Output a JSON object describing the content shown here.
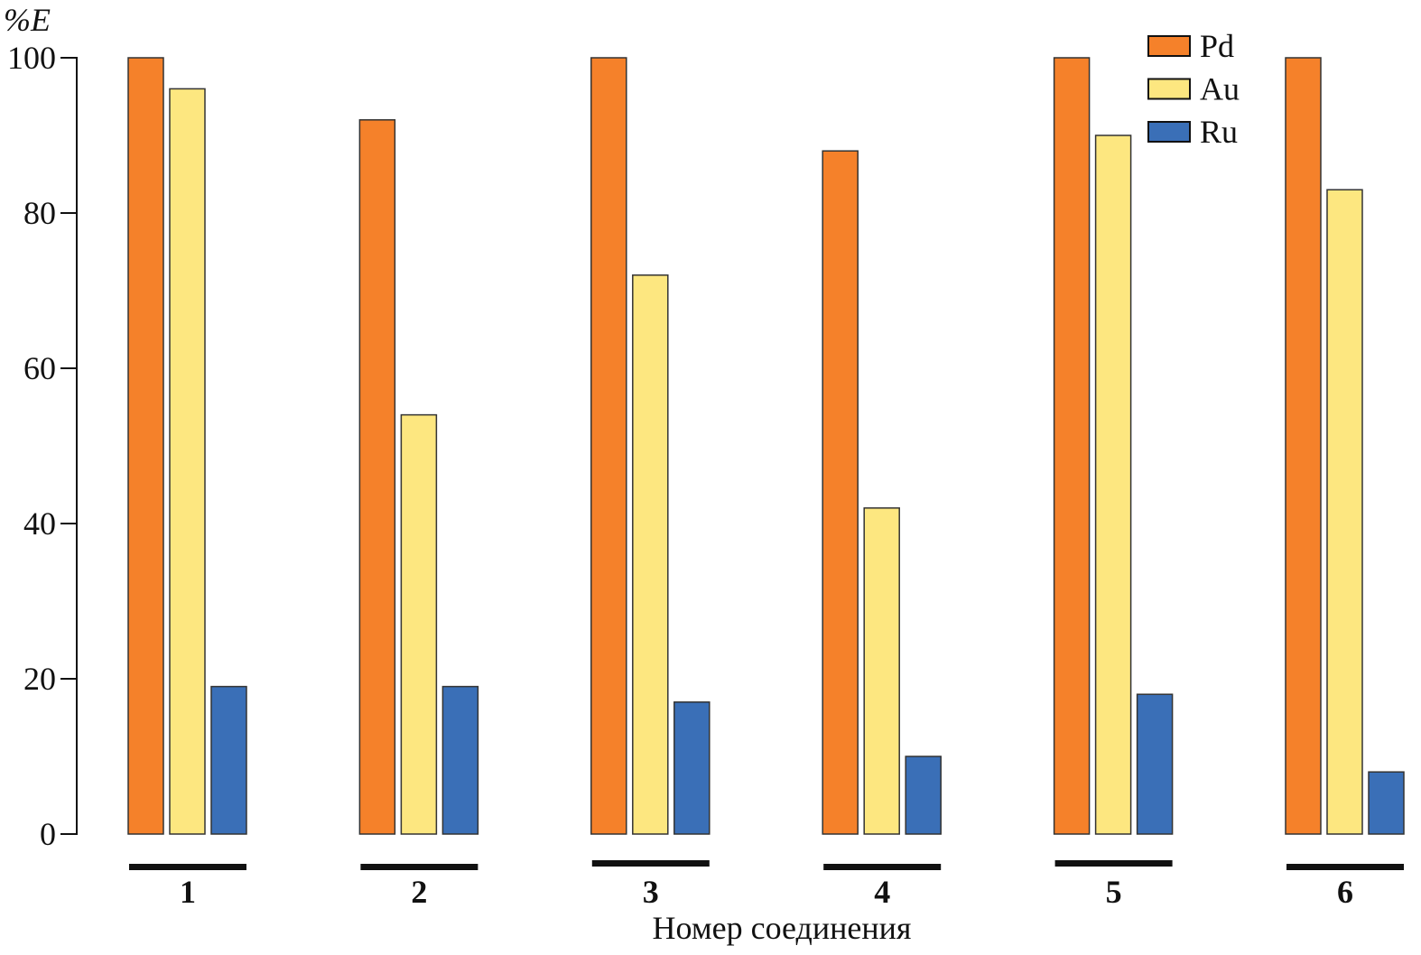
{
  "chart_data": {
    "type": "bar",
    "title": "",
    "ylabel": "%E",
    "xlabel": "Номер соединения",
    "ylim": [
      0,
      100
    ],
    "yticks": [
      "0",
      "20",
      "40",
      "60",
      "80",
      "100"
    ],
    "categories": [
      "1",
      "2",
      "3",
      "4",
      "5",
      "6"
    ],
    "legend_position": "top-right",
    "grid": false,
    "series": [
      {
        "name": "Pd",
        "color": "#f5812a",
        "values": [
          100,
          92,
          100,
          88,
          100,
          100
        ]
      },
      {
        "name": "Au",
        "color": "#fde780",
        "values": [
          96,
          54,
          72,
          42,
          90,
          83
        ]
      },
      {
        "name": "Ru",
        "color": "#3a6fb7",
        "values": [
          19,
          19,
          17,
          10,
          18,
          8
        ]
      }
    ]
  }
}
